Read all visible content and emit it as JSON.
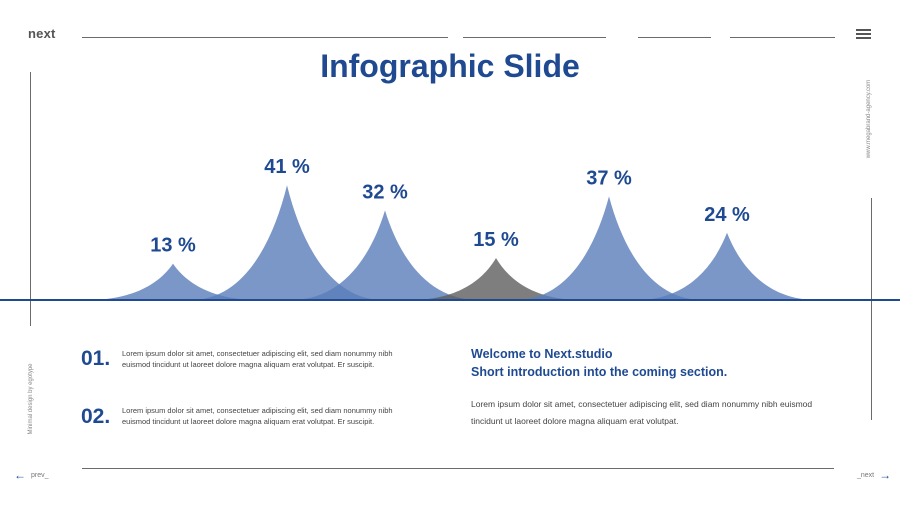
{
  "header": {
    "brand": "next",
    "menu_icon": "hamburger-menu-icon"
  },
  "title": "Infographic Slide",
  "side_url": "www.megabrand-agency.com",
  "side_credit": "Minimal design by egotype",
  "chart_data": {
    "type": "area",
    "title": "",
    "values": [
      13,
      41,
      32,
      15,
      37,
      24
    ],
    "value_labels": [
      "13 %",
      "41 %",
      "32 %",
      "15 %",
      "37 %",
      "24 %"
    ],
    "series_colors": [
      "#5a7dba",
      "#5a7dba",
      "#5a7dba",
      "#5e5e5e",
      "#5a7dba",
      "#5a7dba"
    ],
    "ylim": [
      0,
      41
    ],
    "grid": false,
    "legend": false
  },
  "items": [
    {
      "number": "01.",
      "text": "Lorem ipsum dolor sit amet, consectetuer adipiscing elit, sed diam nonummy nibh euismod tincidunt ut laoreet dolore magna aliquam erat volutpat. Er suscipit."
    },
    {
      "number": "02.",
      "text": "Lorem ipsum dolor sit amet, consectetuer adipiscing elit, sed diam nonummy nibh euismod tincidunt ut laoreet dolore magna aliquam erat volutpat. Er suscipit."
    }
  ],
  "welcome": {
    "line1": "Welcome to Next.studio",
    "line2": "Short introduction into the coming section.",
    "body": "Lorem ipsum dolor sit amet, consectetuer adipiscing elit, sed diam nonummy nibh euismod tincidunt ut laoreet dolore magna aliquam erat volutpat."
  },
  "nav": {
    "prev": "prev_",
    "next": "_next",
    "prev_icon": "arrow-left-icon",
    "next_icon": "arrow-right-icon"
  },
  "accent_color": "#1f4a92"
}
